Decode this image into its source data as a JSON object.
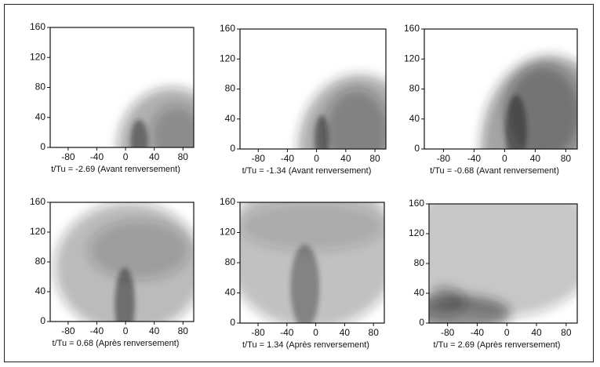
{
  "chart_data": [
    {
      "type": "density",
      "xlabel": "t/Tu = -2.69 (Avant renversement)",
      "xlim": [
        -105,
        95
      ],
      "ylim": [
        0,
        160
      ],
      "xticks": [
        -80,
        -40,
        0,
        40,
        80
      ],
      "yticks": [
        0,
        40,
        80,
        120,
        160
      ]
    },
    {
      "type": "density",
      "xlabel": "t/Tu = -1.34 (Avant renversement)",
      "xlim": [
        -105,
        95
      ],
      "ylim": [
        0,
        160
      ],
      "xticks": [
        -80,
        -40,
        0,
        40,
        80
      ],
      "yticks": [
        0,
        40,
        80,
        120,
        160
      ]
    },
    {
      "type": "density",
      "xlabel": "t/Tu = -0.68 (Avant renversement)",
      "xlim": [
        -105,
        95
      ],
      "ylim": [
        0,
        160
      ],
      "xticks": [
        -80,
        -40,
        0,
        40,
        80
      ],
      "yticks": [
        0,
        40,
        80,
        120,
        160
      ]
    },
    {
      "type": "density",
      "xlabel": "t/Tu = 0.68 (Après renversement)",
      "xlim": [
        -105,
        95
      ],
      "ylim": [
        0,
        160
      ],
      "xticks": [
        -80,
        -40,
        0,
        40,
        80
      ],
      "yticks": [
        0,
        40,
        80,
        120,
        160
      ]
    },
    {
      "type": "density",
      "xlabel": "t/Tu = 1.34 (Après renversement)",
      "xlim": [
        -105,
        95
      ],
      "ylim": [
        0,
        160
      ],
      "xticks": [
        -80,
        -40,
        0,
        40,
        80
      ],
      "yticks": [
        0,
        40,
        80,
        120,
        160
      ]
    },
    {
      "type": "density",
      "xlabel": "t/Tu = 2.69 (Après renversement)",
      "xlim": [
        -105,
        95
      ],
      "ylim": [
        0,
        160
      ],
      "xticks": [
        -80,
        -40,
        0,
        40,
        80
      ],
      "yticks": [
        0,
        40,
        80,
        120,
        160
      ]
    }
  ]
}
